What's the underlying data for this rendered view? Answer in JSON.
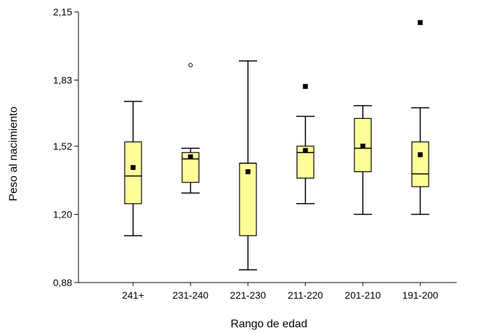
{
  "chart_data": {
    "type": "boxplot",
    "xlabel": "Rango de edad",
    "ylabel": "Peso al nacimiento",
    "ylim": [
      0.88,
      2.15
    ],
    "yticks": [
      "0,88",
      "1,20",
      "1,52",
      "1,83",
      "2,15"
    ],
    "ytick_values": [
      0.88,
      1.2,
      1.52,
      1.83,
      2.15
    ],
    "categories": [
      "241+",
      "231-240",
      "221-230",
      "211-220",
      "201-210",
      "191-200"
    ],
    "boxes": [
      {
        "category": "241+",
        "whisker_low": 1.1,
        "q1": 1.25,
        "median": 1.38,
        "q3": 1.54,
        "whisker_high": 1.73,
        "mean": 1.42,
        "outliers": [],
        "extremes": []
      },
      {
        "category": "231-240",
        "whisker_low": 1.3,
        "q1": 1.35,
        "median": 1.46,
        "q3": 1.49,
        "whisker_high": 1.51,
        "mean": 1.47,
        "outliers": [
          1.9
        ],
        "extremes": []
      },
      {
        "category": "221-230",
        "whisker_low": 0.94,
        "q1": 1.1,
        "median": 1.44,
        "q3": 1.44,
        "whisker_high": 1.92,
        "mean": 1.4,
        "outliers": [],
        "extremes": []
      },
      {
        "category": "211-220",
        "whisker_low": 1.25,
        "q1": 1.37,
        "median": 1.49,
        "q3": 1.52,
        "whisker_high": 1.66,
        "mean": 1.5,
        "outliers": [],
        "extremes": [
          1.8
        ]
      },
      {
        "category": "201-210",
        "whisker_low": 1.2,
        "q1": 1.4,
        "median": 1.51,
        "q3": 1.65,
        "whisker_high": 1.71,
        "mean": 1.52,
        "outliers": [],
        "extremes": []
      },
      {
        "category": "191-200",
        "whisker_low": 1.2,
        "q1": 1.33,
        "median": 1.39,
        "q3": 1.54,
        "whisker_high": 1.7,
        "mean": 1.48,
        "outliers": [],
        "extremes": [
          2.1
        ]
      }
    ],
    "box_fill": "#ffff99",
    "box_stroke": "#000000",
    "grid": false,
    "legend": "none"
  }
}
